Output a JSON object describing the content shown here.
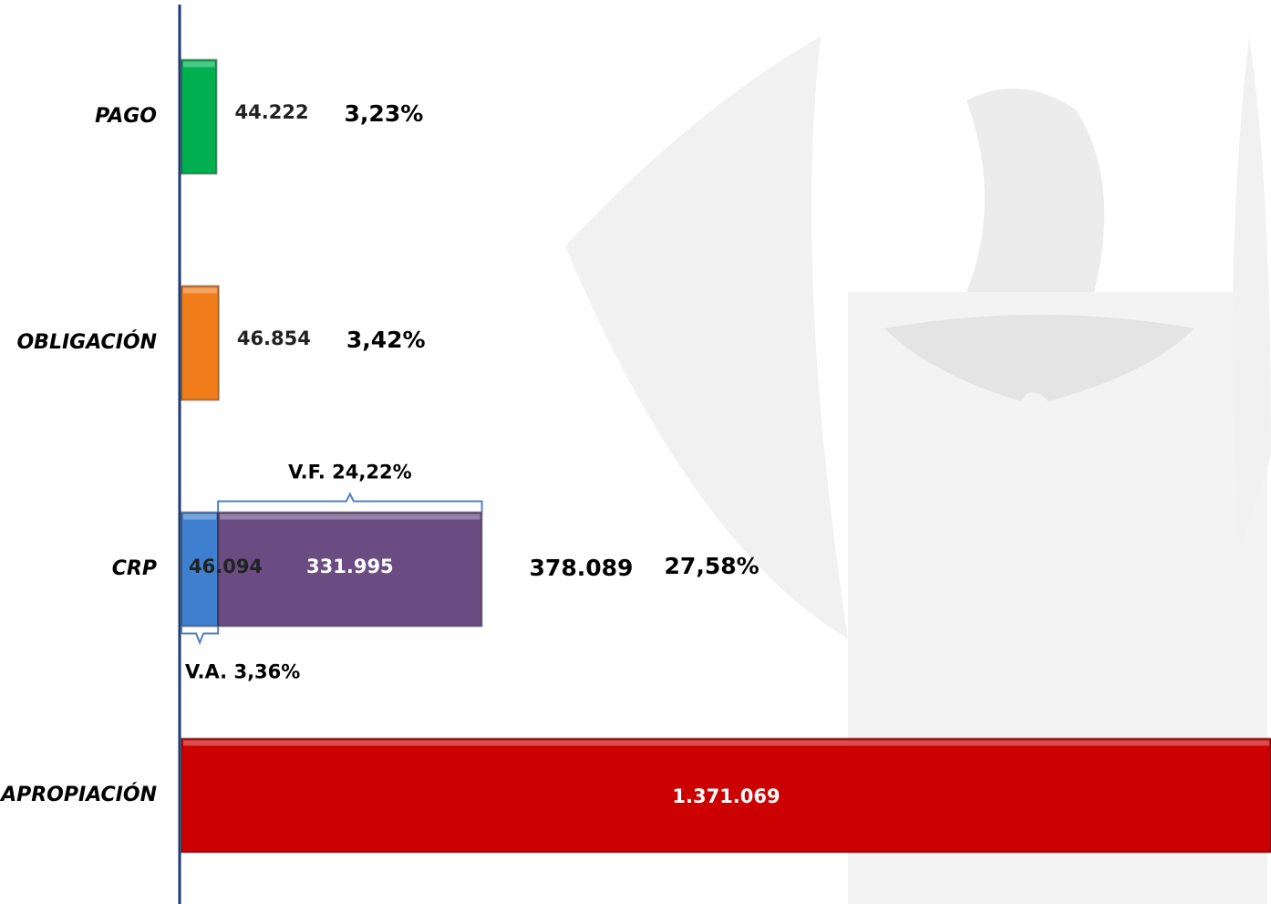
{
  "chart_data": {
    "type": "hbar_stacked",
    "categories": [
      "PAGO",
      "OBLIGACIÓN",
      "CRP",
      "APROPIACIÓN"
    ],
    "series": [
      {
        "colors": [
          "#00b050",
          "#f07d1a",
          "#3f7fcf",
          "#cc0000"
        ],
        "values": [
          44222,
          46854,
          46094,
          1371069
        ],
        "value_labels": [
          "44.222",
          "46.854",
          "46.094",
          "1.371.069"
        ]
      },
      {
        "color": "#6a4c82",
        "values": [
          null,
          null,
          331995,
          null
        ],
        "value_labels": [
          null,
          null,
          "331.995",
          null
        ]
      }
    ],
    "totals": {
      "values": [
        null,
        null,
        378089,
        null
      ],
      "value_labels": [
        null,
        null,
        "378.089",
        null
      ]
    },
    "shares": {
      "values": [
        3.23,
        3.42,
        27.58,
        null
      ],
      "value_labels": [
        "3,23%",
        "3,42%",
        "27,58%",
        null
      ]
    },
    "brackets": [
      {
        "value": 24.22,
        "label": "V.F. 24,22%"
      },
      {
        "value": 3.36,
        "label": "V.A. 3,36%"
      }
    ],
    "xlim": [
      0,
      1371069
    ]
  }
}
